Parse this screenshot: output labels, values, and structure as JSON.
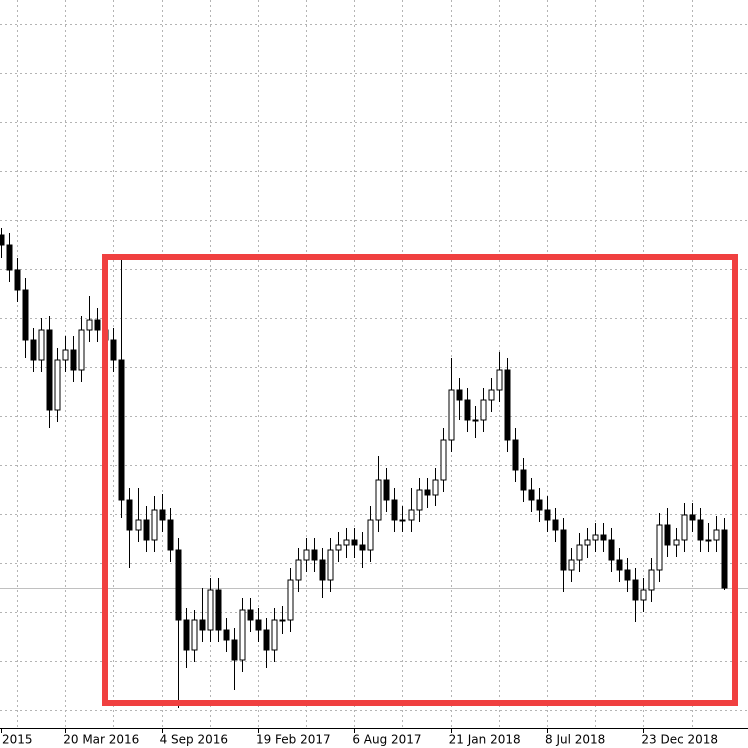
{
  "chart_data": {
    "type": "candlestick",
    "categories": [
      "2015",
      null,
      null,
      null,
      null,
      null,
      null,
      null,
      "20 Mar 2016",
      null,
      null,
      null,
      null,
      null,
      null,
      null,
      null,
      null,
      null,
      null,
      "4 Sep 2016",
      null,
      null,
      null,
      null,
      null,
      null,
      null,
      null,
      null,
      null,
      null,
      "19 Feb 2017",
      null,
      null,
      null,
      null,
      null,
      null,
      null,
      null,
      null,
      null,
      null,
      "6 Aug 2017",
      null,
      null,
      null,
      null,
      null,
      null,
      null,
      null,
      null,
      null,
      null,
      "21 Jan 2018",
      null,
      null,
      null,
      null,
      null,
      null,
      null,
      null,
      null,
      null,
      null,
      "8 Jul 2018",
      null,
      null,
      null,
      null,
      null,
      null,
      null,
      null,
      null,
      null,
      null,
      "23 Dec 2018",
      null,
      null,
      null,
      null,
      null,
      null,
      null,
      null,
      null,
      null
    ],
    "open": [
      493,
      483,
      458,
      438,
      388,
      368,
      398,
      318,
      368,
      378,
      358,
      398,
      408,
      398,
      388,
      368,
      228,
      198,
      208,
      188,
      218,
      208,
      178,
      108,
      78,
      108,
      98,
      138,
      98,
      88,
      68,
      118,
      108,
      98,
      78,
      108,
      108,
      148,
      168,
      178,
      168,
      148,
      178,
      183,
      188,
      183,
      178,
      208,
      248,
      228,
      208,
      208,
      218,
      238,
      233,
      248,
      288,
      338,
      328,
      308,
      308,
      328,
      338,
      358,
      288,
      258,
      238,
      228,
      218,
      208,
      198,
      158,
      168,
      183,
      188,
      193,
      188,
      168,
      158,
      148,
      128,
      138,
      158,
      203,
      183,
      188,
      213,
      208,
      188,
      188,
      198
    ],
    "high": [
      500,
      495,
      470,
      450,
      400,
      410,
      412,
      380,
      392,
      392,
      412,
      432,
      420,
      412,
      400,
      470,
      240,
      240,
      222,
      232,
      234,
      220,
      190,
      120,
      118,
      140,
      150,
      150,
      110,
      100,
      130,
      130,
      120,
      110,
      120,
      122,
      160,
      180,
      190,
      190,
      180,
      190,
      196,
      200,
      200,
      196,
      222,
      272,
      260,
      240,
      222,
      240,
      250,
      250,
      260,
      300,
      370,
      350,
      340,
      322,
      340,
      350,
      376,
      370,
      300,
      270,
      250,
      240,
      232,
      220,
      210,
      180,
      195,
      200,
      205,
      205,
      200,
      180,
      170,
      160,
      150,
      170,
      215,
      220,
      200,
      225,
      225,
      220,
      205,
      212,
      210
    ],
    "low": [
      470,
      446,
      426,
      370,
      356,
      356,
      300,
      306,
      356,
      346,
      346,
      386,
      386,
      376,
      356,
      210,
      160,
      186,
      176,
      176,
      196,
      166,
      20,
      60,
      66,
      86,
      86,
      86,
      76,
      38,
      56,
      96,
      86,
      60,
      66,
      94,
      96,
      136,
      156,
      156,
      130,
      136,
      166,
      170,
      170,
      160,
      166,
      196,
      216,
      196,
      196,
      196,
      206,
      220,
      222,
      236,
      276,
      308,
      296,
      290,
      296,
      316,
      326,
      276,
      246,
      226,
      216,
      206,
      196,
      186,
      136,
      146,
      156,
      170,
      176,
      176,
      156,
      146,
      136,
      106,
      116,
      126,
      146,
      171,
      171,
      176,
      196,
      176,
      176,
      176,
      138
    ],
    "close": [
      483,
      458,
      438,
      388,
      368,
      398,
      318,
      368,
      378,
      358,
      398,
      408,
      398,
      388,
      368,
      228,
      198,
      208,
      188,
      218,
      208,
      178,
      108,
      78,
      108,
      98,
      138,
      98,
      88,
      68,
      118,
      108,
      98,
      78,
      108,
      108,
      148,
      168,
      178,
      168,
      148,
      178,
      183,
      188,
      183,
      178,
      208,
      248,
      228,
      208,
      208,
      218,
      238,
      233,
      248,
      288,
      338,
      328,
      308,
      308,
      328,
      338,
      358,
      288,
      258,
      238,
      228,
      218,
      208,
      198,
      158,
      168,
      183,
      188,
      193,
      188,
      168,
      158,
      148,
      128,
      138,
      158,
      203,
      183,
      188,
      213,
      208,
      188,
      188,
      198,
      140
    ],
    "up_color": "#ffffff",
    "down_color": "#000000",
    "wick_color": "#000000",
    "ylim": [
      0,
      728
    ],
    "yticks": [
      18,
      67,
      116,
      165,
      214,
      263,
      312,
      361,
      410,
      459,
      508,
      557,
      606,
      655,
      704
    ],
    "grid": true
  }
}
